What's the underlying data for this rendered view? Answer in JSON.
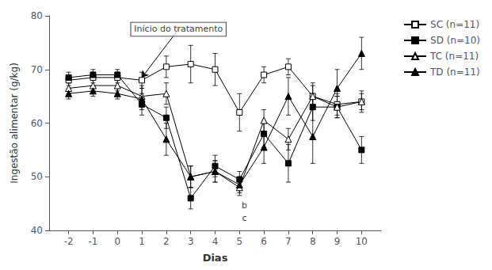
{
  "chart_data": {
    "type": "line",
    "xlabel": "Dias",
    "ylabel": "Ingestão alimentar (g/kg)",
    "x": [
      -2,
      -1,
      0,
      1,
      2,
      3,
      4,
      5,
      6,
      7,
      8,
      9,
      10
    ],
    "xlim": [
      -2.8,
      10.8
    ],
    "xticks": [
      -2,
      -1,
      0,
      1,
      2,
      3,
      4,
      5,
      6,
      7,
      8,
      9,
      10
    ],
    "ylim": [
      40,
      80
    ],
    "yticks": [
      40,
      50,
      60,
      70,
      80
    ],
    "grid": false,
    "legend": "right",
    "series": [
      {
        "name": "SC (n=11)",
        "color": "#000000",
        "marker": "square-open",
        "values": [
          68.0,
          68.5,
          68.5,
          68.0,
          70.5,
          71.0,
          70.0,
          62.0,
          69.0,
          70.5,
          65.0,
          63.5,
          64.0
        ],
        "yerr": [
          1.0,
          1.0,
          1.0,
          1.5,
          2.0,
          3.5,
          3.0,
          3.5,
          1.5,
          1.5,
          2.0,
          2.0,
          1.5
        ]
      },
      {
        "name": "SD (n=10)",
        "color": "#000000",
        "marker": "square",
        "values": [
          68.5,
          69.0,
          69.0,
          63.5,
          61.0,
          46.0,
          52.0,
          49.5,
          58.0,
          52.5,
          63.0,
          63.0,
          55.0
        ],
        "yerr": [
          1.0,
          1.0,
          1.0,
          2.0,
          2.0,
          2.0,
          2.0,
          1.5,
          2.5,
          3.5,
          2.5,
          2.0,
          2.5
        ]
      },
      {
        "name": "TC (n=11)",
        "color": "#000000",
        "marker": "triangle-open",
        "values": [
          66.5,
          67.0,
          67.0,
          65.0,
          65.5,
          50.0,
          51.0,
          48.0,
          60.5,
          57.0,
          65.0,
          63.0,
          64.0
        ],
        "yerr": [
          1.0,
          1.0,
          1.0,
          2.0,
          2.0,
          2.0,
          2.0,
          1.5,
          2.0,
          2.0,
          2.5,
          2.0,
          2.0
        ]
      },
      {
        "name": "TD (n=11)",
        "color": "#000000",
        "marker": "triangle",
        "values": [
          65.5,
          66.0,
          65.5,
          64.5,
          57.0,
          50.0,
          51.0,
          48.5,
          55.5,
          65.0,
          57.5,
          66.5,
          73.0
        ],
        "yerr": [
          1.0,
          1.0,
          1.0,
          2.0,
          3.0,
          2.0,
          2.0,
          1.5,
          3.0,
          3.5,
          5.0,
          3.5,
          3.0
        ]
      }
    ],
    "annotations": [
      {
        "text": "Início do tratamento",
        "x": 2.5,
        "y": 77.5,
        "arrow_x": 1,
        "arrow_y": 68.5
      },
      {
        "text": "b",
        "x": 5.2,
        "y": 43.8
      },
      {
        "text": "c",
        "x": 5.2,
        "y": 41.5
      }
    ]
  }
}
